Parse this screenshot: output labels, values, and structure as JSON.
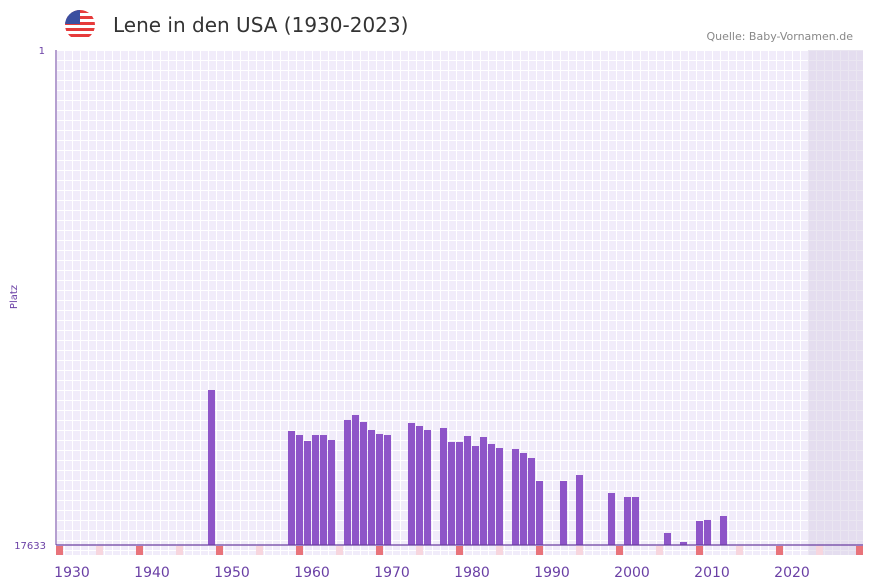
{
  "title": "Lene in den USA (1930-2023)",
  "source": "Quelle: Baby-Vornamen.de",
  "flag_icon": "us-flag-icon",
  "colors": {
    "bar": "#8e55c8",
    "axis": "#6b3fa0",
    "decade_marker": "#e8737a",
    "half_decade_marker": "#f7d6de",
    "grid_bg": "#efe9f9",
    "future_shade": "#ddd8e8"
  },
  "chart_data": {
    "type": "bar",
    "title": "Lene in den USA (1930-2023)",
    "xlabel": "",
    "ylabel": "Platz",
    "xlim": [
      1928,
      2028
    ],
    "ylim": [
      17633,
      1
    ],
    "y_tick_labels": [
      "1",
      "17633"
    ],
    "x_tick_labels": [
      "1930",
      "1940",
      "1950",
      "1960",
      "1970",
      "1980",
      "1990",
      "2000",
      "2010",
      "2020"
    ],
    "grid": true,
    "data_end_year": 2022,
    "series": [
      {
        "name": "Lene",
        "points": [
          {
            "year": 1947,
            "rank": 12112
          },
          {
            "year": 1957,
            "rank": 13572
          },
          {
            "year": 1958,
            "rank": 13715
          },
          {
            "year": 1959,
            "rank": 13928
          },
          {
            "year": 1960,
            "rank": 13715
          },
          {
            "year": 1961,
            "rank": 13715
          },
          {
            "year": 1962,
            "rank": 13893
          },
          {
            "year": 1964,
            "rank": 13180
          },
          {
            "year": 1965,
            "rank": 13002
          },
          {
            "year": 1966,
            "rank": 13252
          },
          {
            "year": 1967,
            "rank": 13537
          },
          {
            "year": 1968,
            "rank": 13679
          },
          {
            "year": 1969,
            "rank": 13715
          },
          {
            "year": 1972,
            "rank": 13287
          },
          {
            "year": 1973,
            "rank": 13394
          },
          {
            "year": 1974,
            "rank": 13537
          },
          {
            "year": 1976,
            "rank": 13465
          },
          {
            "year": 1977,
            "rank": 13964
          },
          {
            "year": 1978,
            "rank": 13964
          },
          {
            "year": 1979,
            "rank": 13750
          },
          {
            "year": 1980,
            "rank": 14107
          },
          {
            "year": 1981,
            "rank": 13786
          },
          {
            "year": 1982,
            "rank": 14035
          },
          {
            "year": 1983,
            "rank": 14178
          },
          {
            "year": 1985,
            "rank": 14213
          },
          {
            "year": 1986,
            "rank": 14356
          },
          {
            "year": 1987,
            "rank": 14534
          },
          {
            "year": 1988,
            "rank": 15353
          },
          {
            "year": 1991,
            "rank": 15353
          },
          {
            "year": 1993,
            "rank": 15140
          },
          {
            "year": 1997,
            "rank": 15781
          },
          {
            "year": 1999,
            "rank": 15923
          },
          {
            "year": 2000,
            "rank": 15923
          },
          {
            "year": 2004,
            "rank": 17205
          },
          {
            "year": 2006,
            "rank": 17526
          },
          {
            "year": 2008,
            "rank": 16778
          },
          {
            "year": 2009,
            "rank": 16742
          },
          {
            "year": 2011,
            "rank": 16600
          }
        ]
      }
    ]
  }
}
